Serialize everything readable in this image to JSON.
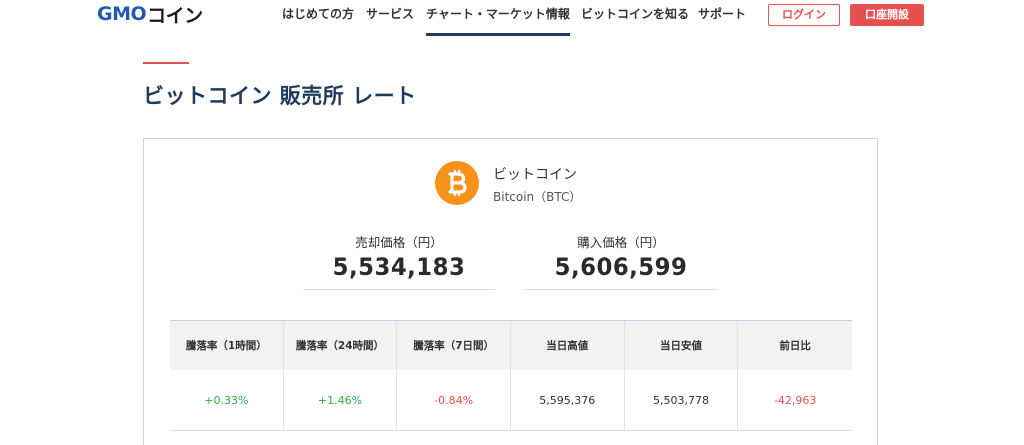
{
  "header": {
    "logo_primary": "GMO",
    "logo_secondary": "コイン",
    "nav": [
      {
        "label": "はじめての方"
      },
      {
        "label": "サービス"
      },
      {
        "label": "チャート・マーケット情報"
      },
      {
        "label": "ビットコインを知る"
      },
      {
        "label": "サポート"
      }
    ],
    "active_nav": "チャート・マーケット情報",
    "login_label": "ログイン",
    "open_account_label": "口座開設"
  },
  "page": {
    "title": "ビットコイン 販売所 レート"
  },
  "coin": {
    "icon": "bitcoin-icon",
    "name": "ビットコイン",
    "subname": "Bitcoin（BTC）",
    "color": "#f7931a"
  },
  "prices": {
    "sell_label": "売却価格（円）",
    "sell_value": "5,534,183",
    "buy_label": "購入価格（円）",
    "buy_value": "5,606,599"
  },
  "stats": {
    "headers": [
      "騰落率（1時間）",
      "騰落率（24時間）",
      "騰落率（7日間）",
      "当日高値",
      "当日安値",
      "前日比"
    ],
    "values": [
      "+0.33%",
      "+1.46%",
      "-0.84%",
      "5,595,376",
      "5,503,778",
      "-42,963"
    ]
  },
  "colors": {
    "accent": "#e84f4f",
    "navy": "#1e3b5e",
    "brand_blue": "#1f5cad",
    "positive": "#2eaa45",
    "negative": "#e84f4f"
  }
}
